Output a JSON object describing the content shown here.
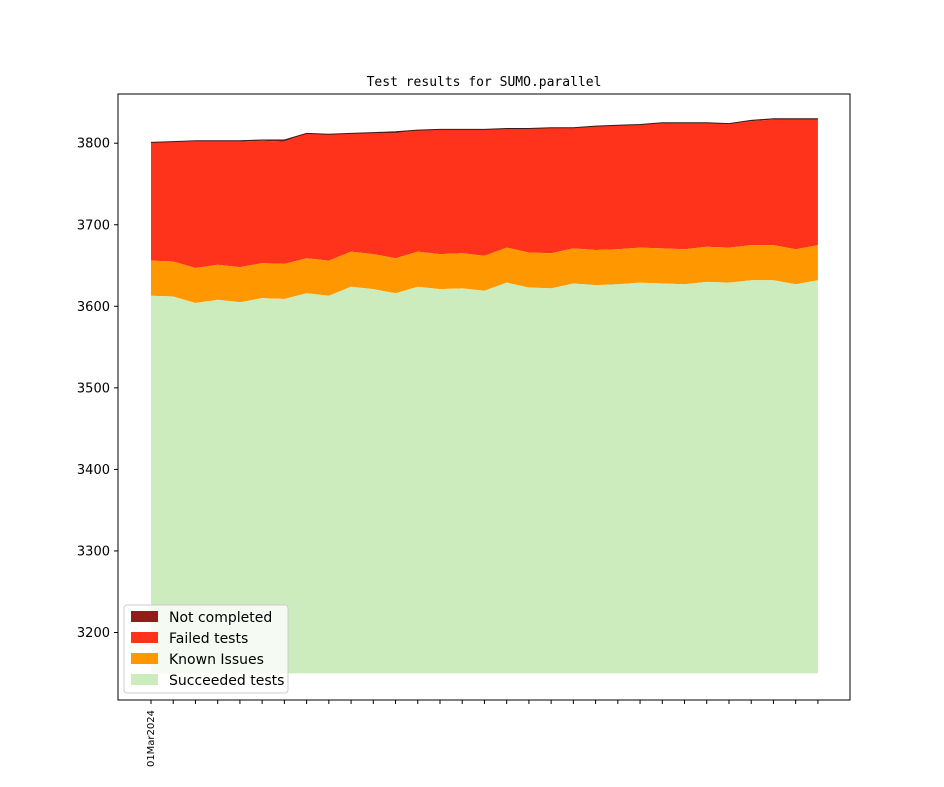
{
  "chart_data": {
    "type": "area",
    "title": "Test results for SUMO.parallel",
    "xlabel": "",
    "ylabel": "",
    "ylim": [
      3150,
      3860
    ],
    "yticks": [
      3200,
      3300,
      3400,
      3500,
      3600,
      3700,
      3800
    ],
    "x_count": 31,
    "x_tick_labels": [
      "01Mar2024"
    ],
    "legend_location": "lower-left",
    "series": [
      {
        "name": "Succeeded tests",
        "color": "#cdecbd",
        "values": [
          3613,
          3612,
          3604,
          3608,
          3605,
          3610,
          3609,
          3616,
          3613,
          3624,
          3621,
          3616,
          3624,
          3621,
          3622,
          3619,
          3629,
          3623,
          3622,
          3628,
          3626,
          3627,
          3629,
          3628,
          3627,
          3630,
          3629,
          3632,
          3632,
          3627,
          3632
        ]
      },
      {
        "name": "Known Issues",
        "color": "#ff9700",
        "values": [
          43,
          43,
          43,
          43,
          43,
          43,
          43,
          43,
          43,
          43,
          43,
          43,
          43,
          43,
          43,
          43,
          43,
          43,
          43,
          43,
          43,
          43,
          43,
          43,
          43,
          43,
          43,
          43,
          43,
          43,
          43
        ]
      },
      {
        "name": "Failed tests",
        "color": "#ff321b",
        "values": [
          145,
          147,
          155,
          151,
          154,
          150,
          150,
          153,
          155,
          145,
          148,
          153,
          149,
          153,
          152,
          155,
          146,
          152,
          154,
          148,
          152,
          152,
          151,
          154,
          155,
          152,
          152,
          152,
          154,
          159,
          154
        ]
      },
      {
        "name": "Not completed",
        "color": "#951b1b",
        "values": [
          0,
          0,
          1,
          1,
          1,
          1,
          2,
          0,
          0,
          0,
          1,
          2,
          0,
          0,
          0,
          0,
          0,
          0,
          0,
          0,
          0,
          0,
          0,
          0,
          0,
          0,
          0,
          1,
          1,
          1,
          1
        ]
      }
    ]
  }
}
